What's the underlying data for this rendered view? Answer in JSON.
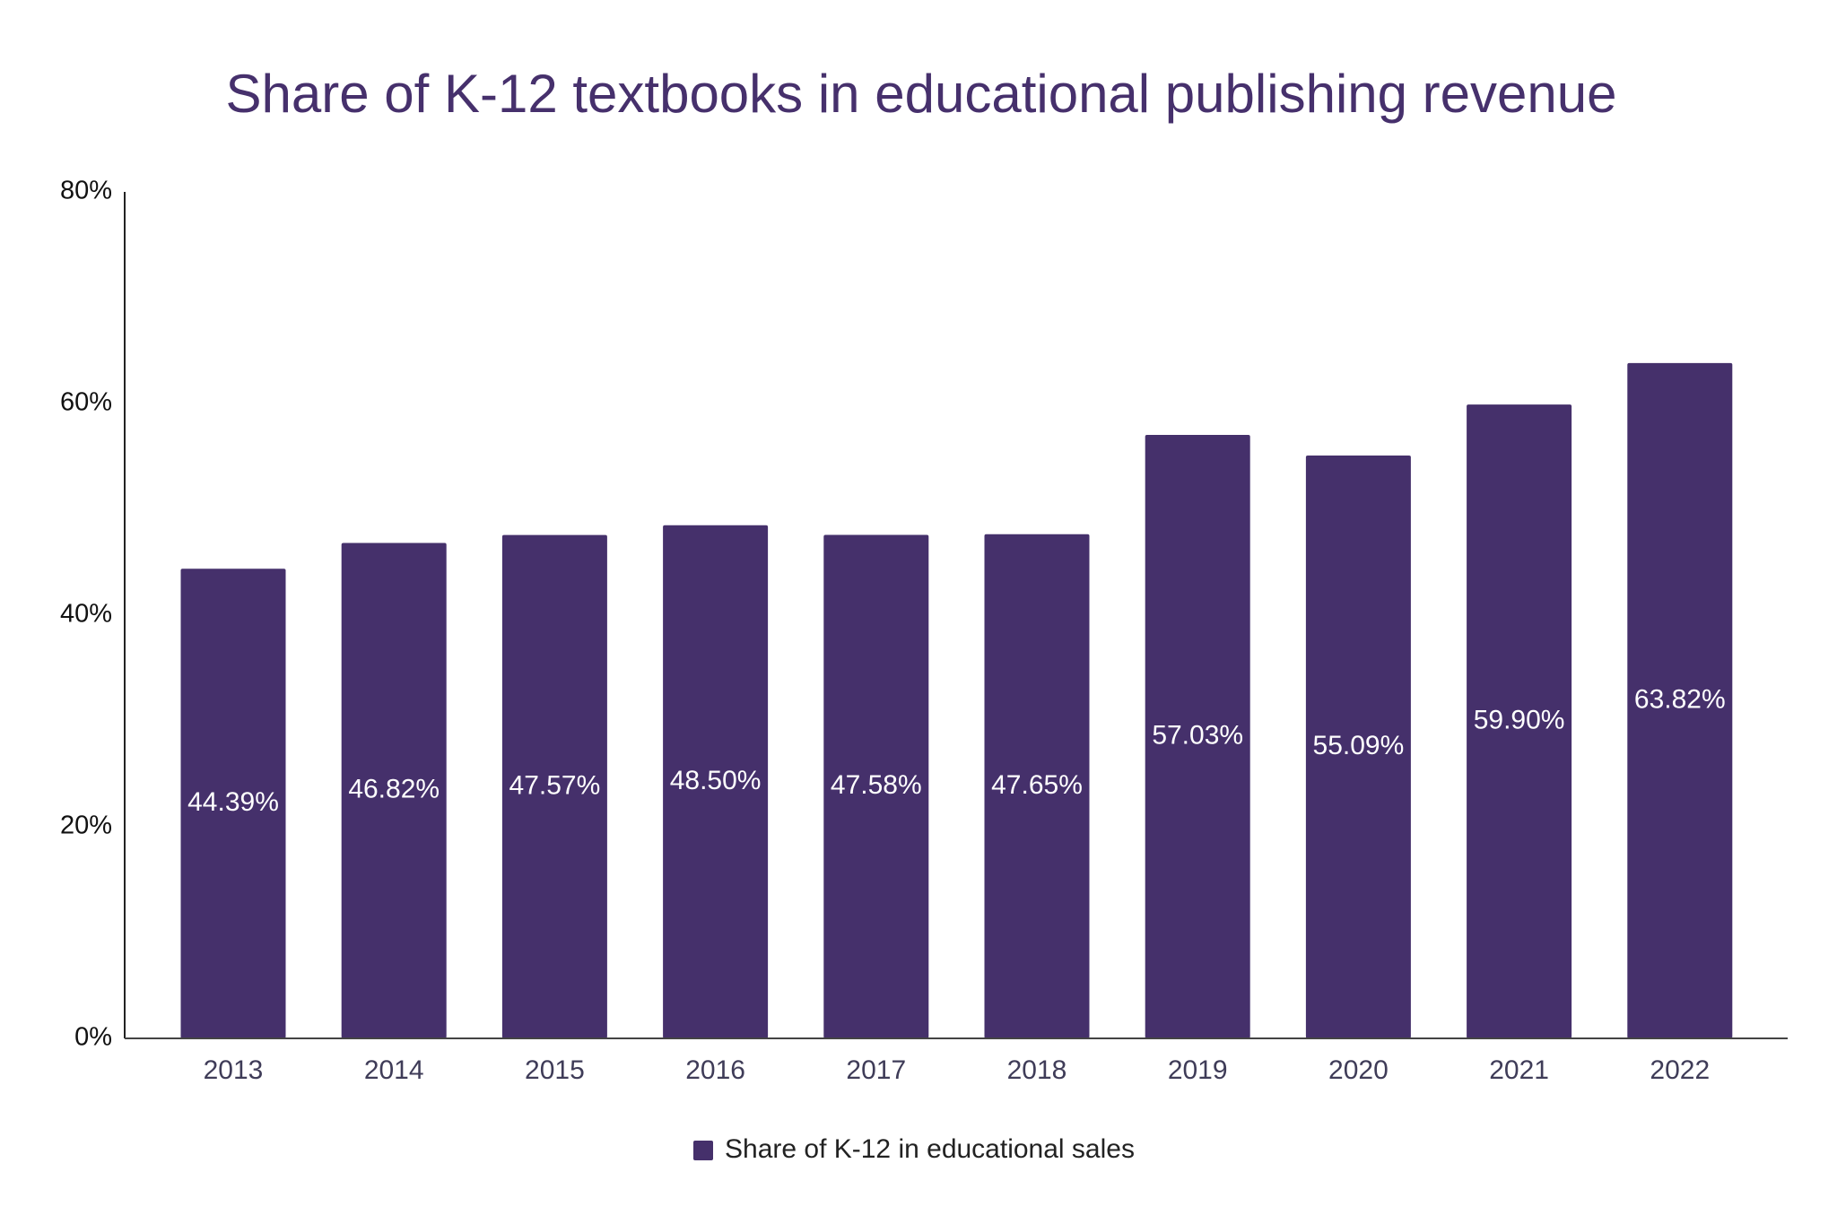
{
  "chart_data": {
    "type": "bar",
    "title": "Share of K-12 textbooks in educational publishing revenue",
    "categories": [
      "2013",
      "2014",
      "2015",
      "2016",
      "2017",
      "2018",
      "2019",
      "2020",
      "2021",
      "2022"
    ],
    "series": [
      {
        "name": "Share of K-12 in educational sales",
        "color": "#45306b",
        "values": [
          44.39,
          46.82,
          47.57,
          48.5,
          47.58,
          47.65,
          57.03,
          55.09,
          59.9,
          63.82
        ],
        "value_labels": [
          "44.39%",
          "46.82%",
          "47.57%",
          "48.50%",
          "47.58%",
          "47.65%",
          "57.03%",
          "55.09%",
          "59.90%",
          "63.82%"
        ]
      }
    ],
    "ylim": [
      0,
      80
    ],
    "yticks": [
      {
        "value": 0,
        "label": "0%"
      },
      {
        "value": 20,
        "label": "20%"
      },
      {
        "value": 40,
        "label": "40%"
      },
      {
        "value": 60,
        "label": "60%"
      },
      {
        "value": 80,
        "label": "80%"
      }
    ],
    "grid": false,
    "legend": "bottom"
  }
}
